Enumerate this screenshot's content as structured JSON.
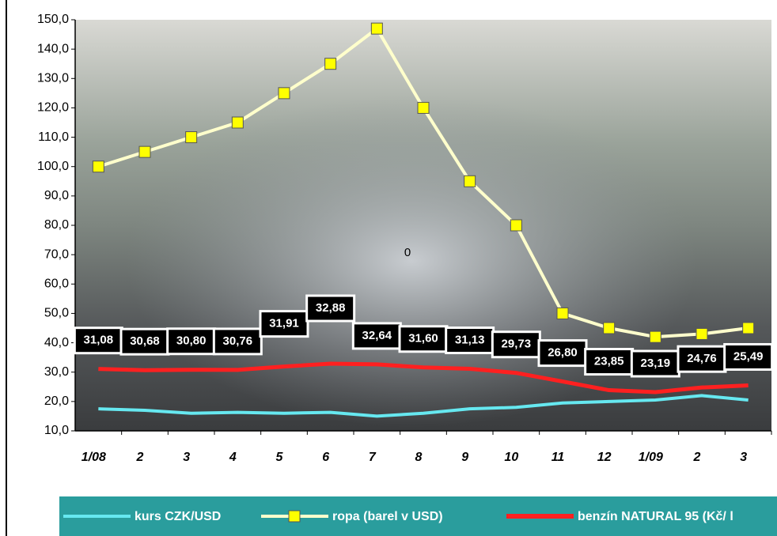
{
  "chart_data": {
    "type": "line",
    "categories": [
      "1/08",
      "2",
      "3",
      "4",
      "5",
      "6",
      "7",
      "8",
      "9",
      "10",
      "11",
      "12",
      "1/09",
      "2",
      "3"
    ],
    "series": [
      {
        "name": "kurs CZK/USD",
        "color": "#66e8f0",
        "values": [
          17.5,
          17,
          16,
          16.3,
          16,
          16.3,
          15,
          16,
          17.5,
          18,
          19.5,
          20,
          20.5,
          22,
          20.5
        ]
      },
      {
        "name": "ropa (barel v USD)",
        "color": "#ffffcc",
        "marker_color": "#ffff00",
        "values": [
          100,
          105,
          110,
          115,
          125,
          135,
          147,
          120,
          95,
          80,
          50,
          45,
          42,
          43,
          45
        ]
      },
      {
        "name": "benzín NATURAL 95 (Kč/ l",
        "color": "#ff2020",
        "values": [
          31.08,
          30.68,
          30.8,
          30.76,
          31.91,
          32.88,
          32.64,
          31.6,
          31.13,
          29.73,
          26.8,
          23.85,
          23.19,
          24.76,
          25.49
        ],
        "value_labels": [
          "31,08",
          "30,68",
          "30,80",
          "30,76",
          "31,91",
          "32,88",
          "32,64",
          "31,60",
          "31,13",
          "29,73",
          "26,80",
          "23,85",
          "23,19",
          "24,76",
          "25,49"
        ]
      }
    ],
    "annotation": "0",
    "ylim": [
      10,
      150
    ],
    "yticks": [
      {
        "value": 10,
        "label": "10,0"
      },
      {
        "value": 20,
        "label": "20,0"
      },
      {
        "value": 30,
        "label": "30,0"
      },
      {
        "value": 40,
        "label": "40,0"
      },
      {
        "value": 50,
        "label": "50,0"
      },
      {
        "value": 60,
        "label": "60,0"
      },
      {
        "value": 70,
        "label": "70,0"
      },
      {
        "value": 80,
        "label": "80,0"
      },
      {
        "value": 90,
        "label": "90,0"
      },
      {
        "value": 100,
        "label": "100,0"
      },
      {
        "value": 110,
        "label": "110,0"
      },
      {
        "value": 120,
        "label": "120,0"
      },
      {
        "value": 130,
        "label": "130,0"
      },
      {
        "value": 140,
        "label": "140,0"
      },
      {
        "value": 150,
        "label": "150,0"
      }
    ],
    "legend_position": "bottom",
    "legend_color": "#2a9d9d"
  }
}
